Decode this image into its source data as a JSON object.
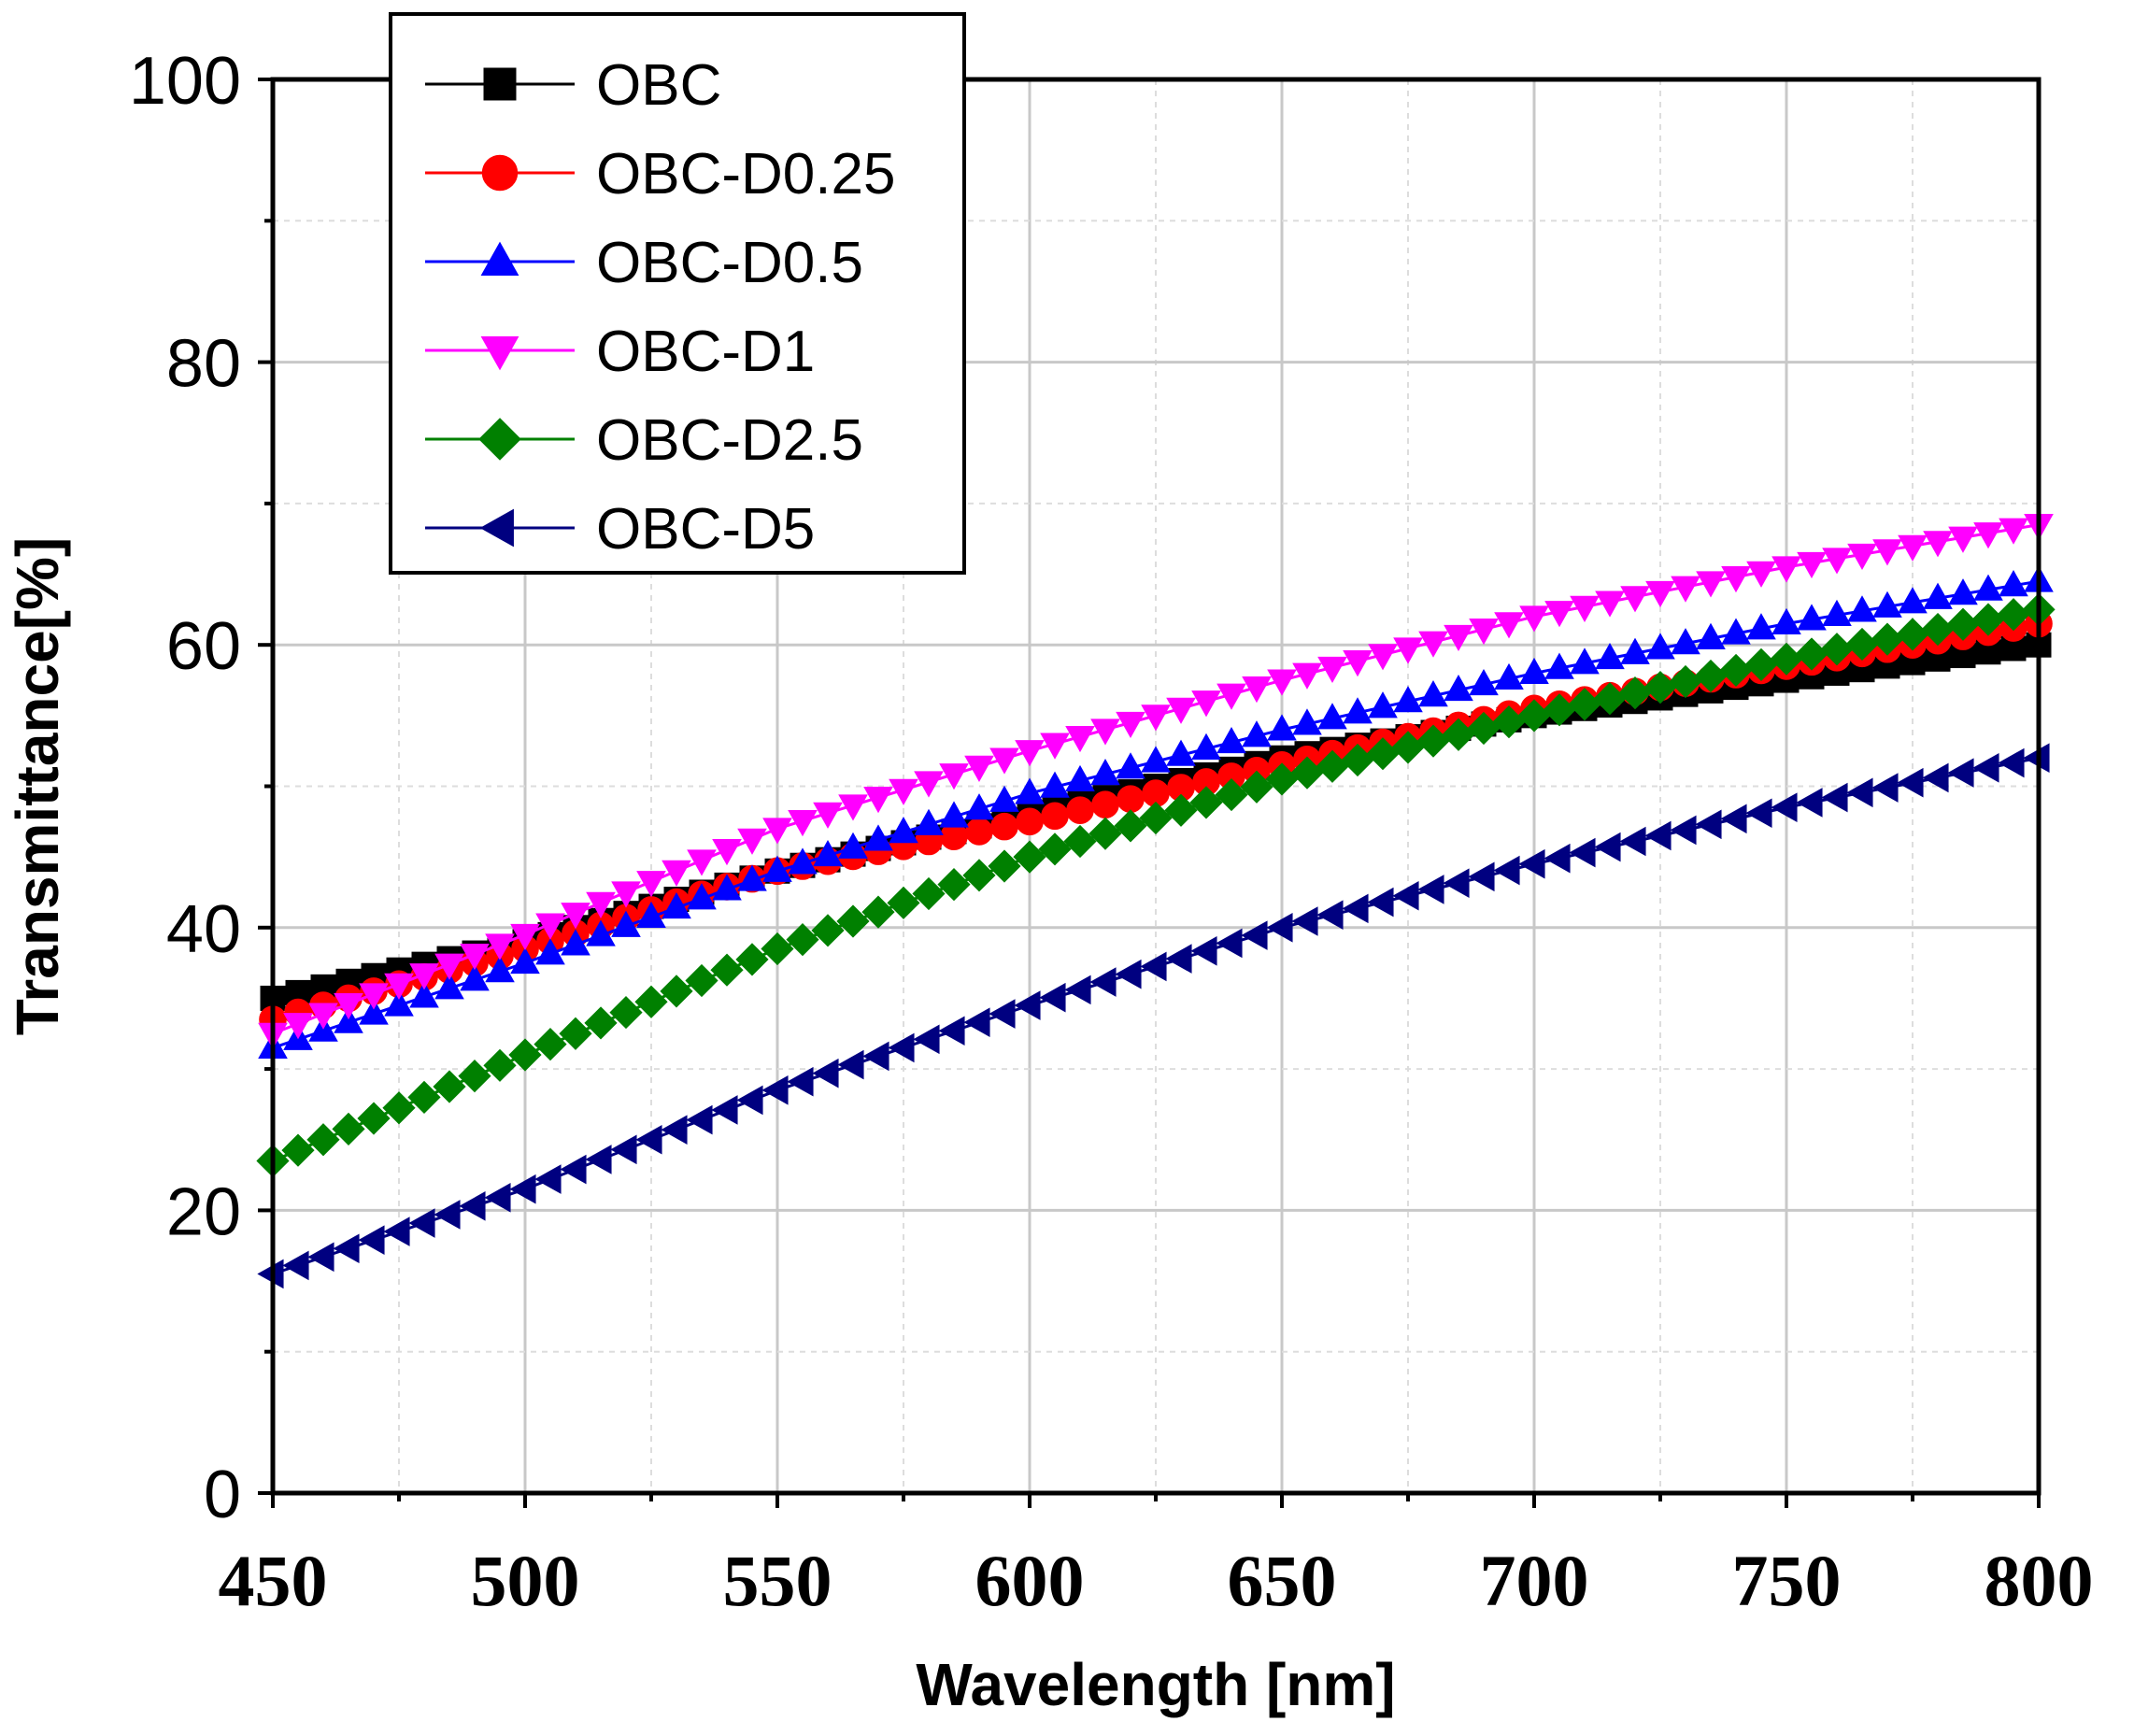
{
  "chart_data": {
    "type": "line",
    "title": "",
    "xlabel": "Wavelength [nm]",
    "ylabel": "Transmittance[%]",
    "xlim": [
      450,
      800
    ],
    "ylim": [
      0,
      100
    ],
    "xticks": [
      "450",
      "500",
      "550",
      "600",
      "650",
      "700",
      "750",
      "800"
    ],
    "yticks": [
      "0",
      "20",
      "40",
      "60",
      "80",
      "100"
    ],
    "grid": true,
    "legend_position": "top-left",
    "x": [
      450,
      500,
      550,
      600,
      650,
      700,
      750,
      800
    ],
    "series": [
      {
        "name": "OBC",
        "color": "#000000",
        "marker": "square",
        "values": [
          35,
          39,
          44,
          48,
          52,
          55,
          57.5,
          60
        ]
      },
      {
        "name": "OBC-D0.25",
        "color": "#ff0000",
        "marker": "circle",
        "values": [
          33.5,
          38.5,
          44,
          47.5,
          51.5,
          55.5,
          58.5,
          61.5
        ]
      },
      {
        "name": "OBC-D0.5",
        "color": "#0000ff",
        "marker": "triangle-up",
        "values": [
          31.5,
          37.5,
          44,
          49.5,
          54,
          58,
          61.5,
          64.5
        ]
      },
      {
        "name": "OBC-D1",
        "color": "#ff00ff",
        "marker": "triangle-down",
        "values": [
          32.5,
          39.5,
          47,
          52.5,
          57.5,
          62,
          65.5,
          68.5
        ]
      },
      {
        "name": "OBC-D2.5",
        "color": "#008000",
        "marker": "diamond",
        "values": [
          23.5,
          31,
          38.5,
          45,
          50.5,
          55,
          59,
          62.5
        ]
      },
      {
        "name": "OBC-D5",
        "color": "#000080",
        "marker": "triangle-left",
        "values": [
          15.5,
          21.5,
          28.5,
          34.5,
          40,
          44.5,
          48.5,
          52
        ]
      }
    ]
  }
}
